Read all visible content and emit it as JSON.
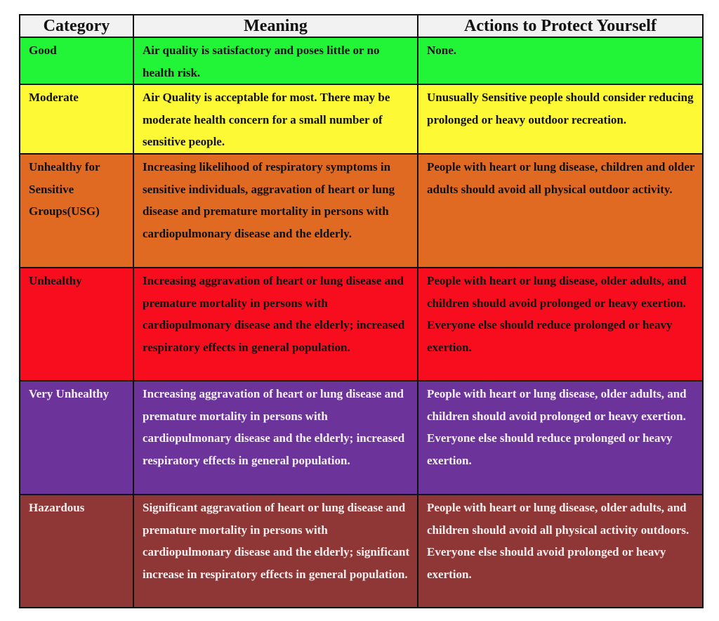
{
  "headers": [
    "Category",
    "Meaning",
    "Actions to Protect Yourself"
  ],
  "rows": [
    {
      "category": "Good",
      "meaning": "Air quality is satisfactory and poses little or no health risk.",
      "actions": "None.",
      "bg": "#22f537",
      "fg": "#111111"
    },
    {
      "category": "Moderate",
      "meaning": "Air Quality is acceptable for most. There may be moderate health concern for a small number of sensitive people.",
      "actions": "Unusually Sensitive people should consider reducing prolonged or heavy outdoor recreation.",
      "bg": "#fdf935",
      "fg": "#111111"
    },
    {
      "category": "Unhealthy for Sensitive Groups(USG)",
      "meaning": "Increasing likelihood of respiratory symptoms in sensitive individuals, aggravation of heart or lung disease and premature mortality in persons with cardiopulmonary disease and the elderly.",
      "actions": "People with heart or lung disease, children and older adults should avoid all physical outdoor activity.",
      "bg": "#e06a22",
      "fg": "#111111"
    },
    {
      "category": "Unhealthy",
      "meaning": "Increasing aggravation of heart or lung disease and premature mortality in persons with cardiopulmonary disease and the elderly; increased respiratory effects in general population.",
      "actions": "People with heart or lung disease, older adults, and children should avoid prolonged or heavy exertion. Everyone else should reduce prolonged or heavy exertion.",
      "bg": "#f80d1e",
      "fg": "#111111"
    },
    {
      "category": "Very Unhealthy",
      "meaning": "Increasing aggravation of heart or lung disease and premature mortality in persons with cardiopulmonary disease and the elderly; increased respiratory effects in general population.",
      "actions": "People with heart or lung disease, older adults, and children should avoid prolonged or heavy exertion. Everyone else should reduce prolonged or heavy exertion.",
      "bg": "#6c349b",
      "fg": "#f4f0f4"
    },
    {
      "category": "Hazardous",
      "meaning": "Significant aggravation of heart or lung disease and premature mortality in persons with cardiopulmonary disease and the elderly; significant increase in respiratory effects in general population.",
      "actions": "People with heart or lung disease, older adults, and children should avoid all physical activity outdoors. Everyone else should avoid prolonged or heavy exertion.",
      "bg": "#8f3636",
      "fg": "#f4eeee"
    }
  ]
}
